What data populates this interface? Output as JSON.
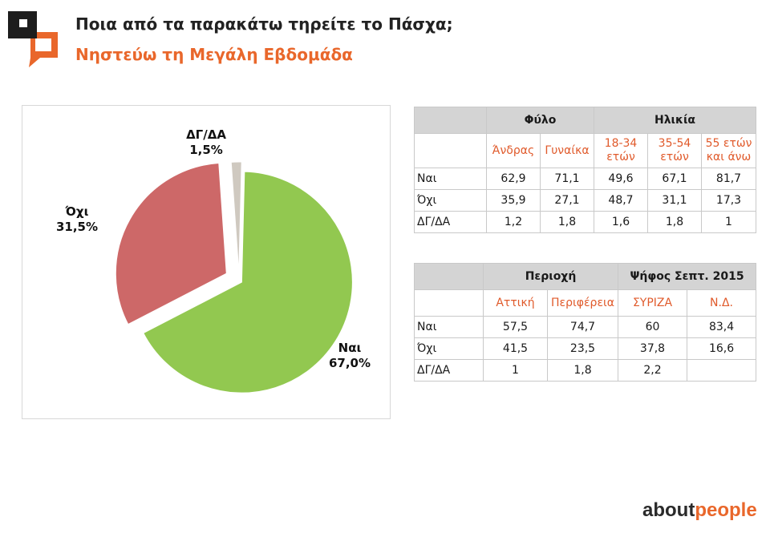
{
  "header": {
    "title": "Ποια από τα παρακάτω τηρείτε το Πάσχα;",
    "subtitle": "Νηστεύω τη Μεγάλη Εβδομάδα"
  },
  "colors": {
    "accent": "#e9672b",
    "nai": "#92c850",
    "oxi": "#cd6868",
    "dgda": "#cfc9c0"
  },
  "chart_data": {
    "type": "pie",
    "title": "",
    "slices": [
      {
        "label": "Ναι",
        "value": 67.0,
        "display": "67,0%",
        "color": "#92c850"
      },
      {
        "label": "Όχι",
        "value": 31.5,
        "display": "31,5%",
        "color": "#cd6868"
      },
      {
        "label": "ΔΓ/ΔΑ",
        "value": 1.5,
        "display": "1,5%",
        "color": "#cfc9c0"
      }
    ]
  },
  "table1": {
    "groups": [
      "Φύλο",
      "Ηλικία"
    ],
    "columns": [
      [
        "Άνδρας"
      ],
      [
        "Γυναίκα"
      ],
      [
        "18-34",
        "ετών"
      ],
      [
        "35-54",
        "ετών"
      ],
      [
        "55 ετών",
        "και άνω"
      ]
    ],
    "rows": [
      {
        "label": "Ναι",
        "values": [
          "62,9",
          "71,1",
          "49,6",
          "67,1",
          "81,7"
        ]
      },
      {
        "label": "Όχι",
        "values": [
          "35,9",
          "27,1",
          "48,7",
          "31,1",
          "17,3"
        ]
      },
      {
        "label": "ΔΓ/ΔΑ",
        "values": [
          "1,2",
          "1,8",
          "1,6",
          "1,8",
          "1"
        ]
      }
    ]
  },
  "table2": {
    "groups": [
      "Περιοχή",
      "Ψήφος Σεπτ. 2015"
    ],
    "columns": [
      "Αττική",
      "Περιφέρεια",
      "ΣΥΡΙΖΑ",
      "Ν.Δ."
    ],
    "rows": [
      {
        "label": "Ναι",
        "values": [
          "57,5",
          "74,7",
          "60",
          "83,4"
        ]
      },
      {
        "label": "Όχι",
        "values": [
          "41,5",
          "23,5",
          "37,8",
          "16,6"
        ]
      },
      {
        "label": "ΔΓ/ΔΑ",
        "values": [
          "1",
          "1,8",
          "2,2",
          ""
        ]
      }
    ]
  },
  "brand": {
    "part1": "about",
    "part2": "people"
  }
}
